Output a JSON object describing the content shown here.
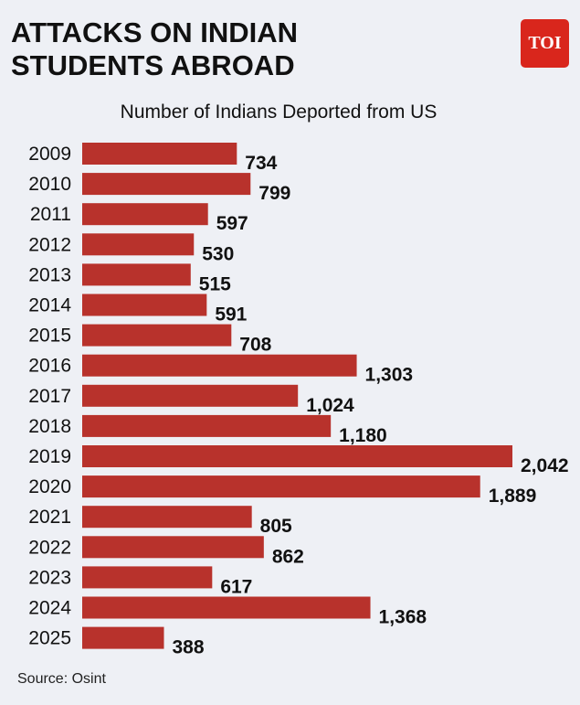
{
  "header": {
    "title": "ATTACKS ON INDIAN STUDENTS ABROAD",
    "logo_text": "TOI",
    "brand_color": "#d9261c"
  },
  "chart_data": {
    "type": "bar",
    "orientation": "horizontal",
    "title": "Number of Indians Deported from US",
    "categories": [
      "2009",
      "2010",
      "2011",
      "2012",
      "2013",
      "2014",
      "2015",
      "2016",
      "2017",
      "2018",
      "2019",
      "2020",
      "2021",
      "2022",
      "2023",
      "2024",
      "2025"
    ],
    "values": [
      734,
      799,
      597,
      530,
      515,
      591,
      708,
      1303,
      1024,
      1180,
      2042,
      1889,
      805,
      862,
      617,
      1368,
      388
    ],
    "value_labels": [
      "734",
      "799",
      "597",
      "530",
      "515",
      "591",
      "708",
      "1,303",
      "1,024",
      "1,180",
      "2,042",
      "1,889",
      "805",
      "862",
      "617",
      "1,368",
      "388"
    ],
    "bar_color": "#b8322c",
    "xlabel": "",
    "ylabel": "",
    "grid": false
  },
  "footer": {
    "source": "Source: Osint"
  }
}
